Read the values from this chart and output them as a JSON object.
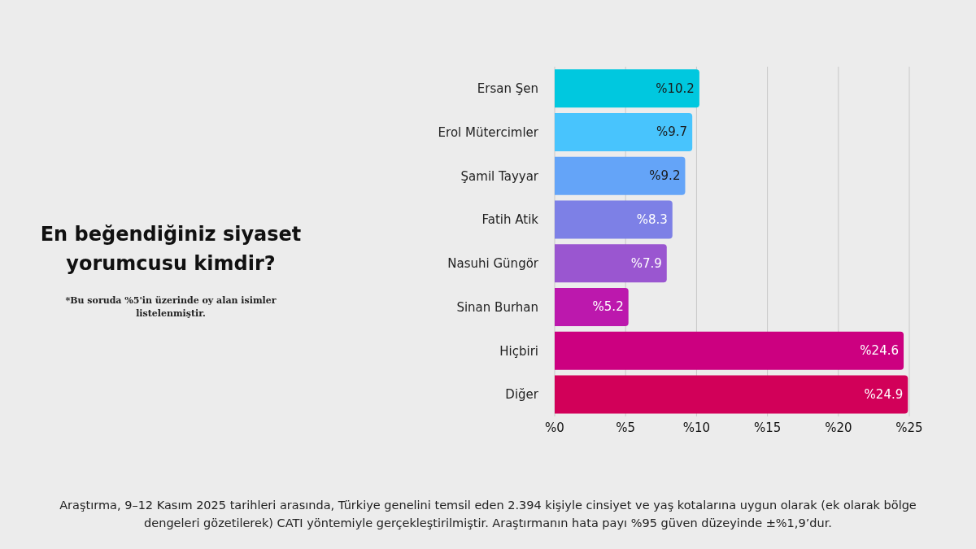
{
  "chart_data": {
    "type": "bar",
    "orientation": "horizontal",
    "title": "En beğendiğiniz siyaset yorumcusu kimdir?",
    "subtitle": "*Bu soruda %5'in üzerinde oy alan isimler listelenmiştir.",
    "categories": [
      "Ersan Şen",
      "Erol Mütercimler",
      "Şamil Tayyar",
      "Fatih Atik",
      "Nasuhi Güngör",
      "Sinan Burhan",
      "Hiçbiri",
      "Diğer"
    ],
    "values": [
      10.2,
      9.7,
      9.2,
      8.3,
      7.9,
      5.2,
      24.6,
      24.9
    ],
    "colors": [
      "#00c8df",
      "#48c4fd",
      "#64a4f8",
      "#7d80e6",
      "#9a56d0",
      "#bc18ad",
      "#cc0080",
      "#d20059"
    ],
    "value_labels": [
      "%10.2",
      "%9.7",
      "%9.2",
      "%8.3",
      "%7.9",
      "%5.2",
      "%24.6",
      "%24.9"
    ],
    "xlim": [
      0,
      25
    ],
    "xticks": [
      {
        "value": 0,
        "label": "%0"
      },
      {
        "value": 5,
        "label": "%5"
      },
      {
        "value": 10,
        "label": "%10"
      },
      {
        "value": 15,
        "label": "%15"
      },
      {
        "value": 20,
        "label": "%20"
      },
      {
        "value": 25,
        "label": "%25"
      }
    ],
    "grid": "x",
    "annotations": [
      "Araştırma, 9–12 Kasım 2025 tarihleri arasında, Türkiye genelini temsil eden 2.394 kişiyle cinsiyet ve yaş kotalarına uygun olarak (ek olarak bölge dengeleri gözetilerek) CATI yöntemiyle gerçekleştirilmiştir. Araştırmanın hata payı %95 güven düzeyinde ±%1,9’dur."
    ]
  }
}
